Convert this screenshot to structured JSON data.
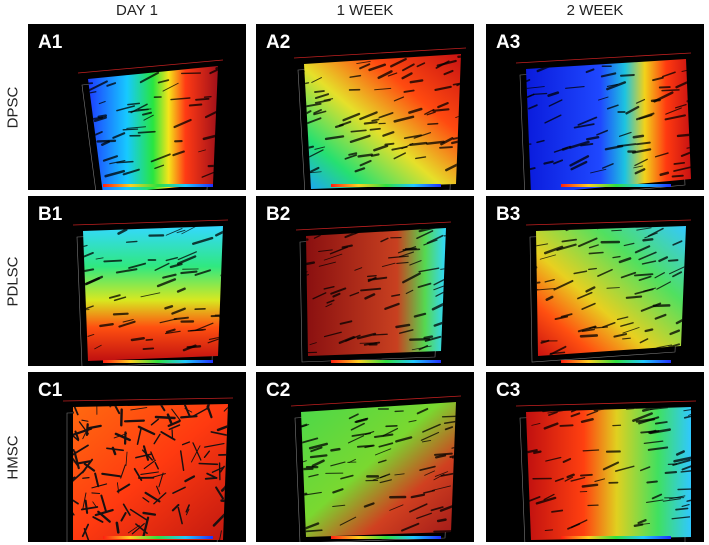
{
  "columns": [
    "DAY 1",
    "1 WEEK",
    "2 WEEK"
  ],
  "rows": [
    "DPSC",
    "PDLSC",
    "HMSC"
  ],
  "panels": [
    {
      "label": "A1",
      "palette": "blue-green-red"
    },
    {
      "label": "A2",
      "palette": "green-red"
    },
    {
      "label": "A3",
      "palette": "blue-red"
    },
    {
      "label": "B1",
      "palette": "cyan-green-red"
    },
    {
      "label": "B2",
      "palette": "red-green"
    },
    {
      "label": "B3",
      "palette": "green-red-diag"
    },
    {
      "label": "C1",
      "palette": "orange-mesh"
    },
    {
      "label": "C2",
      "palette": "green-red-c2"
    },
    {
      "label": "C3",
      "palette": "red-green-c3"
    }
  ],
  "colors": {
    "background": "#ffffff",
    "panel": "#000000",
    "label": "#ffffff"
  }
}
